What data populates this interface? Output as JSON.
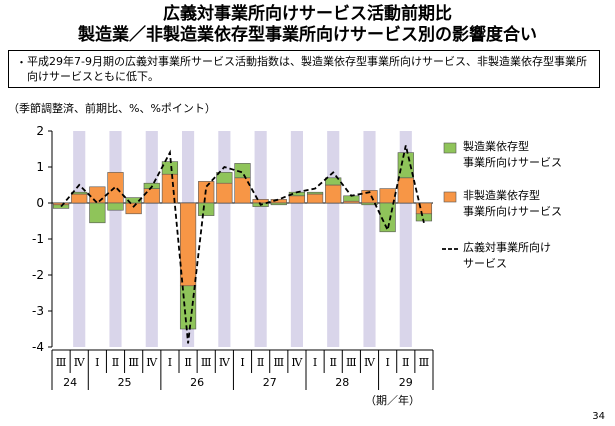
{
  "title": {
    "line1": "広義対事業所向けサービス活動前期比",
    "line2": "製造業／非製造業依存型事業所向けサービス別の影響度合い"
  },
  "note": {
    "bullet": "・",
    "text": "平成29年7-9月期の広義対事業所サービス活動指数は、製造業依存型事業所向けサービス、非製造業依存型事業所向けサービスともに低下。"
  },
  "unit_label": "（季節調整済、前期比、%、%ポイント）",
  "period_label": "（期／年）",
  "page_number": "34",
  "colors": {
    "manufacturing": "#8fc45a",
    "non_manufacturing": "#f79646",
    "shade": "#d9d5ea"
  },
  "chart_data": {
    "type": "bar",
    "stacked": true,
    "ylim": [
      -4,
      2
    ],
    "yticks": [
      "2",
      "1",
      "0",
      "-1",
      "-2",
      "-3",
      "-4"
    ],
    "quarters": [
      "Ⅲ",
      "Ⅳ",
      "Ⅰ",
      "Ⅱ",
      "Ⅲ",
      "Ⅳ",
      "Ⅰ",
      "Ⅱ",
      "Ⅲ",
      "Ⅳ",
      "Ⅰ",
      "Ⅱ",
      "Ⅲ",
      "Ⅳ",
      "Ⅰ",
      "Ⅱ",
      "Ⅲ",
      "Ⅳ",
      "Ⅰ",
      "Ⅱ",
      "Ⅲ"
    ],
    "years": [
      {
        "label": "24",
        "start": 0,
        "count": 2
      },
      {
        "label": "25",
        "start": 2,
        "count": 4
      },
      {
        "label": "26",
        "start": 6,
        "count": 4
      },
      {
        "label": "27",
        "start": 10,
        "count": 4
      },
      {
        "label": "28",
        "start": 14,
        "count": 4
      },
      {
        "label": "29",
        "start": 18,
        "count": 3
      }
    ],
    "shaded_quarters": [
      "Ⅳ",
      "Ⅱ"
    ],
    "series": [
      {
        "name": "製造業依存型\n事業所向けサービス",
        "kind": "bar",
        "values": [
          -0.1,
          0.05,
          -0.55,
          -0.2,
          0.15,
          0.15,
          0.35,
          -1.2,
          -0.35,
          0.3,
          0.4,
          -0.1,
          -0.05,
          0.1,
          0.05,
          0.2,
          0.15,
          -0.05,
          -0.8,
          0.7,
          -0.2
        ]
      },
      {
        "name": "非製造業依存型\n事業所向けサービス",
        "kind": "bar",
        "values": [
          -0.05,
          0.25,
          0.45,
          0.85,
          -0.3,
          0.4,
          0.8,
          -2.3,
          0.6,
          0.55,
          0.7,
          0.1,
          0.1,
          0.2,
          0.25,
          0.5,
          0.05,
          0.35,
          0.4,
          0.7,
          -0.3
        ]
      },
      {
        "name": "広義対事業所向け\nサービス",
        "kind": "line",
        "values": [
          -0.1,
          0.5,
          0.0,
          0.45,
          -0.1,
          0.45,
          1.4,
          -3.9,
          0.45,
          1.0,
          0.85,
          -0.05,
          0.1,
          0.3,
          0.4,
          0.85,
          0.2,
          0.3,
          -0.75,
          1.6,
          -0.55
        ]
      }
    ]
  }
}
